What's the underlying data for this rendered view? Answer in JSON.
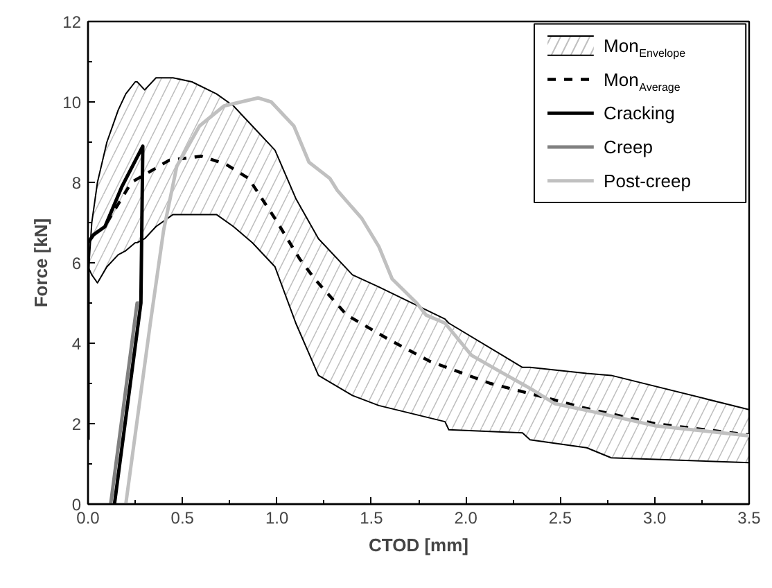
{
  "chart_data": {
    "type": "line",
    "xlabel": "CTOD [mm]",
    "ylabel": "Force [kN]",
    "xlim": [
      0,
      3.5
    ],
    "ylim": [
      0,
      12
    ],
    "xticks": [
      {
        "value": 0,
        "label": "0.0"
      },
      0.5,
      {
        "value": 1,
        "label": "1.0"
      },
      1.5,
      {
        "value": 2,
        "label": "2.0"
      },
      2.5,
      {
        "value": 3,
        "label": "3.0"
      },
      3.5
    ],
    "yticks": [
      0,
      2,
      4,
      6,
      8,
      10,
      12
    ],
    "grid": false,
    "legend": "top right",
    "series": [
      {
        "name": "Mon$_{Envelope}$",
        "color": "#000000",
        "x": [
          0,
          0.02,
          0.05,
          0.1,
          0.16,
          0.2,
          0.25,
          0.26,
          0.3,
          0.36,
          0.45,
          0.55,
          0.68,
          0.77,
          0.87,
          0.99,
          1.1,
          1.22,
          1.4,
          1.54,
          1.89,
          1.91,
          2.3,
          2.34,
          2.64,
          2.77,
          3.5
        ],
        "values": [
          5.6,
          7.0,
          8.0,
          9.0,
          9.8,
          10.2,
          10.5,
          10.5,
          10.3,
          10.6,
          10.6,
          10.5,
          10.2,
          9.9,
          9.4,
          8.8,
          7.6,
          6.6,
          5.7,
          5.4,
          4.6,
          4.5,
          3.4,
          3.4,
          3.25,
          3.2,
          2.35
        ],
        "upper": [
          5.6,
          7.0,
          8.0,
          9.0,
          9.8,
          10.2,
          10.5,
          10.5,
          10.3,
          10.6,
          10.6,
          10.5,
          10.2,
          9.9,
          9.4,
          8.8,
          7.6,
          6.6,
          5.7,
          5.4,
          4.6,
          4.5,
          3.4,
          3.4,
          3.25,
          3.2,
          2.35
        ],
        "lower": [
          5.9,
          5.7,
          5.5,
          5.9,
          6.2,
          6.3,
          6.5,
          6.5,
          6.6,
          6.9,
          7.2,
          7.2,
          7.2,
          6.9,
          6.5,
          5.9,
          4.5,
          3.2,
          2.7,
          2.45,
          2.05,
          1.85,
          1.77,
          1.6,
          1.4,
          1.15,
          1.03
        ]
      },
      {
        "type": "line",
        "color": "#000000",
        "x": [
          0,
          0.02,
          0.05,
          0.1,
          0.16,
          0.2,
          0.25,
          0.26,
          0.3,
          0.36,
          0.45,
          0.55,
          0.68,
          0.77,
          0.87,
          0.99,
          1.1,
          1.22,
          1.4,
          1.54,
          1.89,
          1.91,
          2.3,
          2.34,
          2.64,
          2.77,
          3.5
        ],
        "values": [
          5.9,
          5.7,
          5.5,
          5.9,
          6.2,
          6.3,
          6.5,
          6.5,
          6.6,
          6.9,
          7.2,
          7.2,
          7.2,
          6.9,
          6.5,
          5.9,
          4.5,
          3.2,
          2.7,
          2.45,
          2.05,
          1.85,
          1.77,
          1.6,
          1.4,
          1.15,
          1.03
        ]
      },
      {
        "name": "Mon$_{Average}$",
        "type": "line",
        "line_style": "dashed",
        "color": "#000000",
        "x": [
          0.1,
          0.23,
          0.43,
          0.6,
          0.73,
          0.85,
          0.99,
          1.12,
          1.2,
          1.37,
          1.59,
          1.81,
          2.13,
          2.38,
          2.62,
          3.0,
          3.5
        ],
        "values": [
          7.0,
          8.0,
          8.55,
          8.65,
          8.45,
          8.1,
          7.1,
          6.1,
          5.6,
          4.7,
          4.1,
          3.55,
          3.0,
          2.7,
          2.4,
          2.0,
          1.72
        ]
      },
      {
        "name": "Cracking",
        "type": "line",
        "color": "#000000",
        "x": [
          0,
          0,
          0.03,
          0.09,
          0.18,
          0.29,
          0.28,
          0.14
        ],
        "values": [
          1.6,
          6.5,
          6.7,
          6.9,
          7.9,
          8.9,
          5.0,
          0
        ]
      },
      {
        "name": "Creep",
        "type": "line",
        "color": "#808080",
        "x": [
          0.12,
          0.26,
          0.27
        ],
        "values": [
          0,
          5.0,
          5.0
        ]
      },
      {
        "name": "Post-creep",
        "type": "line",
        "color": "#c0c0c0",
        "x": [
          0.2,
          0.33,
          0.4,
          0.47,
          0.59,
          0.72,
          0.9,
          0.97,
          1.09,
          1.17,
          1.28,
          1.32,
          1.45,
          1.54,
          1.61,
          1.74,
          1.79,
          1.89,
          2.03,
          2.18,
          2.35,
          2.47,
          2.67,
          3.0,
          3.5
        ],
        "values": [
          0,
          4.5,
          6.8,
          8.4,
          9.4,
          9.9,
          10.1,
          10.0,
          9.4,
          8.5,
          8.1,
          7.8,
          7.1,
          6.4,
          5.6,
          5.0,
          4.7,
          4.5,
          3.7,
          3.3,
          2.85,
          2.5,
          2.3,
          1.95,
          1.7
        ]
      }
    ]
  }
}
